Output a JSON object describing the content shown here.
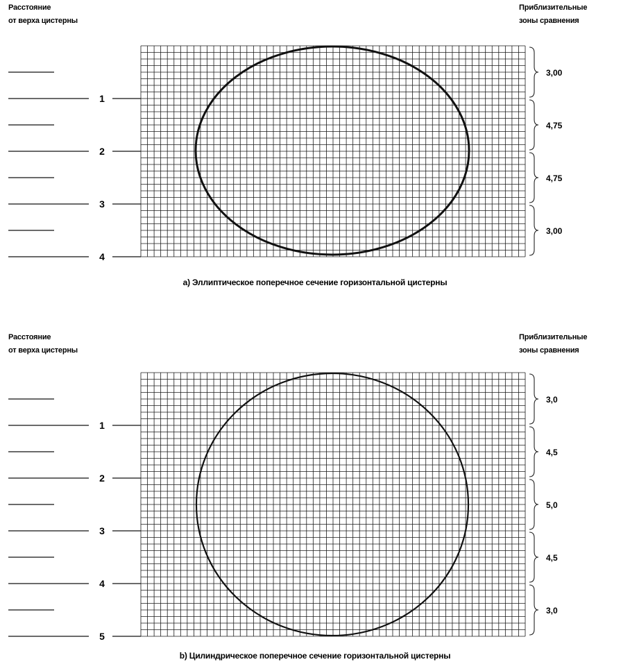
{
  "figures": [
    {
      "id": "a",
      "left_header": [
        "Расстояние",
        "от верха цистерны"
      ],
      "right_header": [
        "Приблизительные",
        "зоны сравнения"
      ],
      "distance_labels": [
        "1",
        "2",
        "3",
        "4"
      ],
      "zone_labels": [
        "3,00",
        "4,75",
        "4,75",
        "3,00"
      ],
      "caption": "a) Эллиптическое поперечное сечение горизонтальной цистерны"
    },
    {
      "id": "b",
      "left_header": [
        "Расстояние",
        "от верха цистерны"
      ],
      "right_header": [
        "Приблизительные",
        "зоны сравнения"
      ],
      "distance_labels": [
        "1",
        "2",
        "3",
        "4",
        "5"
      ],
      "zone_labels": [
        "3,0",
        "4,5",
        "5,0",
        "4,5",
        "3,0"
      ],
      "caption": "b) Цилиндрическое поперечное сечение горизонтальной цистерны"
    }
  ]
}
